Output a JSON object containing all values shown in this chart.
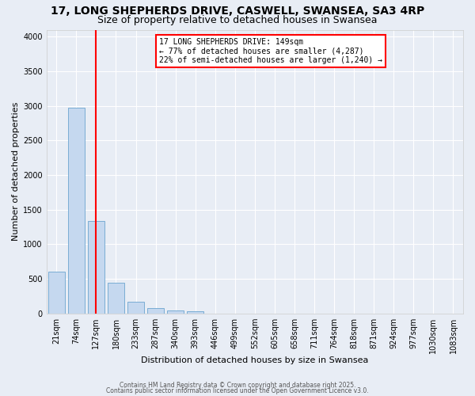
{
  "title_line1": "17, LONG SHEPHERDS DRIVE, CASWELL, SWANSEA, SA3 4RP",
  "title_line2": "Size of property relative to detached houses in Swansea",
  "xlabel": "Distribution of detached houses by size in Swansea",
  "ylabel": "Number of detached properties",
  "bar_labels": [
    "21sqm",
    "74sqm",
    "127sqm",
    "180sqm",
    "233sqm",
    "287sqm",
    "340sqm",
    "393sqm",
    "446sqm",
    "499sqm",
    "552sqm",
    "605sqm",
    "658sqm",
    "711sqm",
    "764sqm",
    "818sqm",
    "871sqm",
    "924sqm",
    "977sqm",
    "1030sqm",
    "1083sqm"
  ],
  "bar_values": [
    600,
    2970,
    1340,
    440,
    165,
    75,
    45,
    30,
    0,
    0,
    0,
    0,
    0,
    0,
    0,
    0,
    0,
    0,
    0,
    0,
    0
  ],
  "bar_color": "#c5d8ef",
  "bar_edgecolor": "#7aadd4",
  "annotation_text": "17 LONG SHEPHERDS DRIVE: 149sqm\n← 77% of detached houses are smaller (4,287)\n22% of semi-detached houses are larger (1,240) →",
  "annotation_box_color": "white",
  "annotation_box_edgecolor": "red",
  "vline_color": "red",
  "vline_x": 2.0,
  "ylim": [
    0,
    4100
  ],
  "yticks": [
    0,
    500,
    1000,
    1500,
    2000,
    2500,
    3000,
    3500,
    4000
  ],
  "bg_color": "#e8edf5",
  "grid_color": "white",
  "footer_line1": "Contains HM Land Registry data © Crown copyright and database right 2025.",
  "footer_line2": "Contains public sector information licensed under the Open Government Licence v3.0.",
  "title_fontsize": 10,
  "subtitle_fontsize": 9,
  "xlabel_fontsize": 8,
  "ylabel_fontsize": 8,
  "tick_fontsize": 7,
  "annotation_fontsize": 7
}
